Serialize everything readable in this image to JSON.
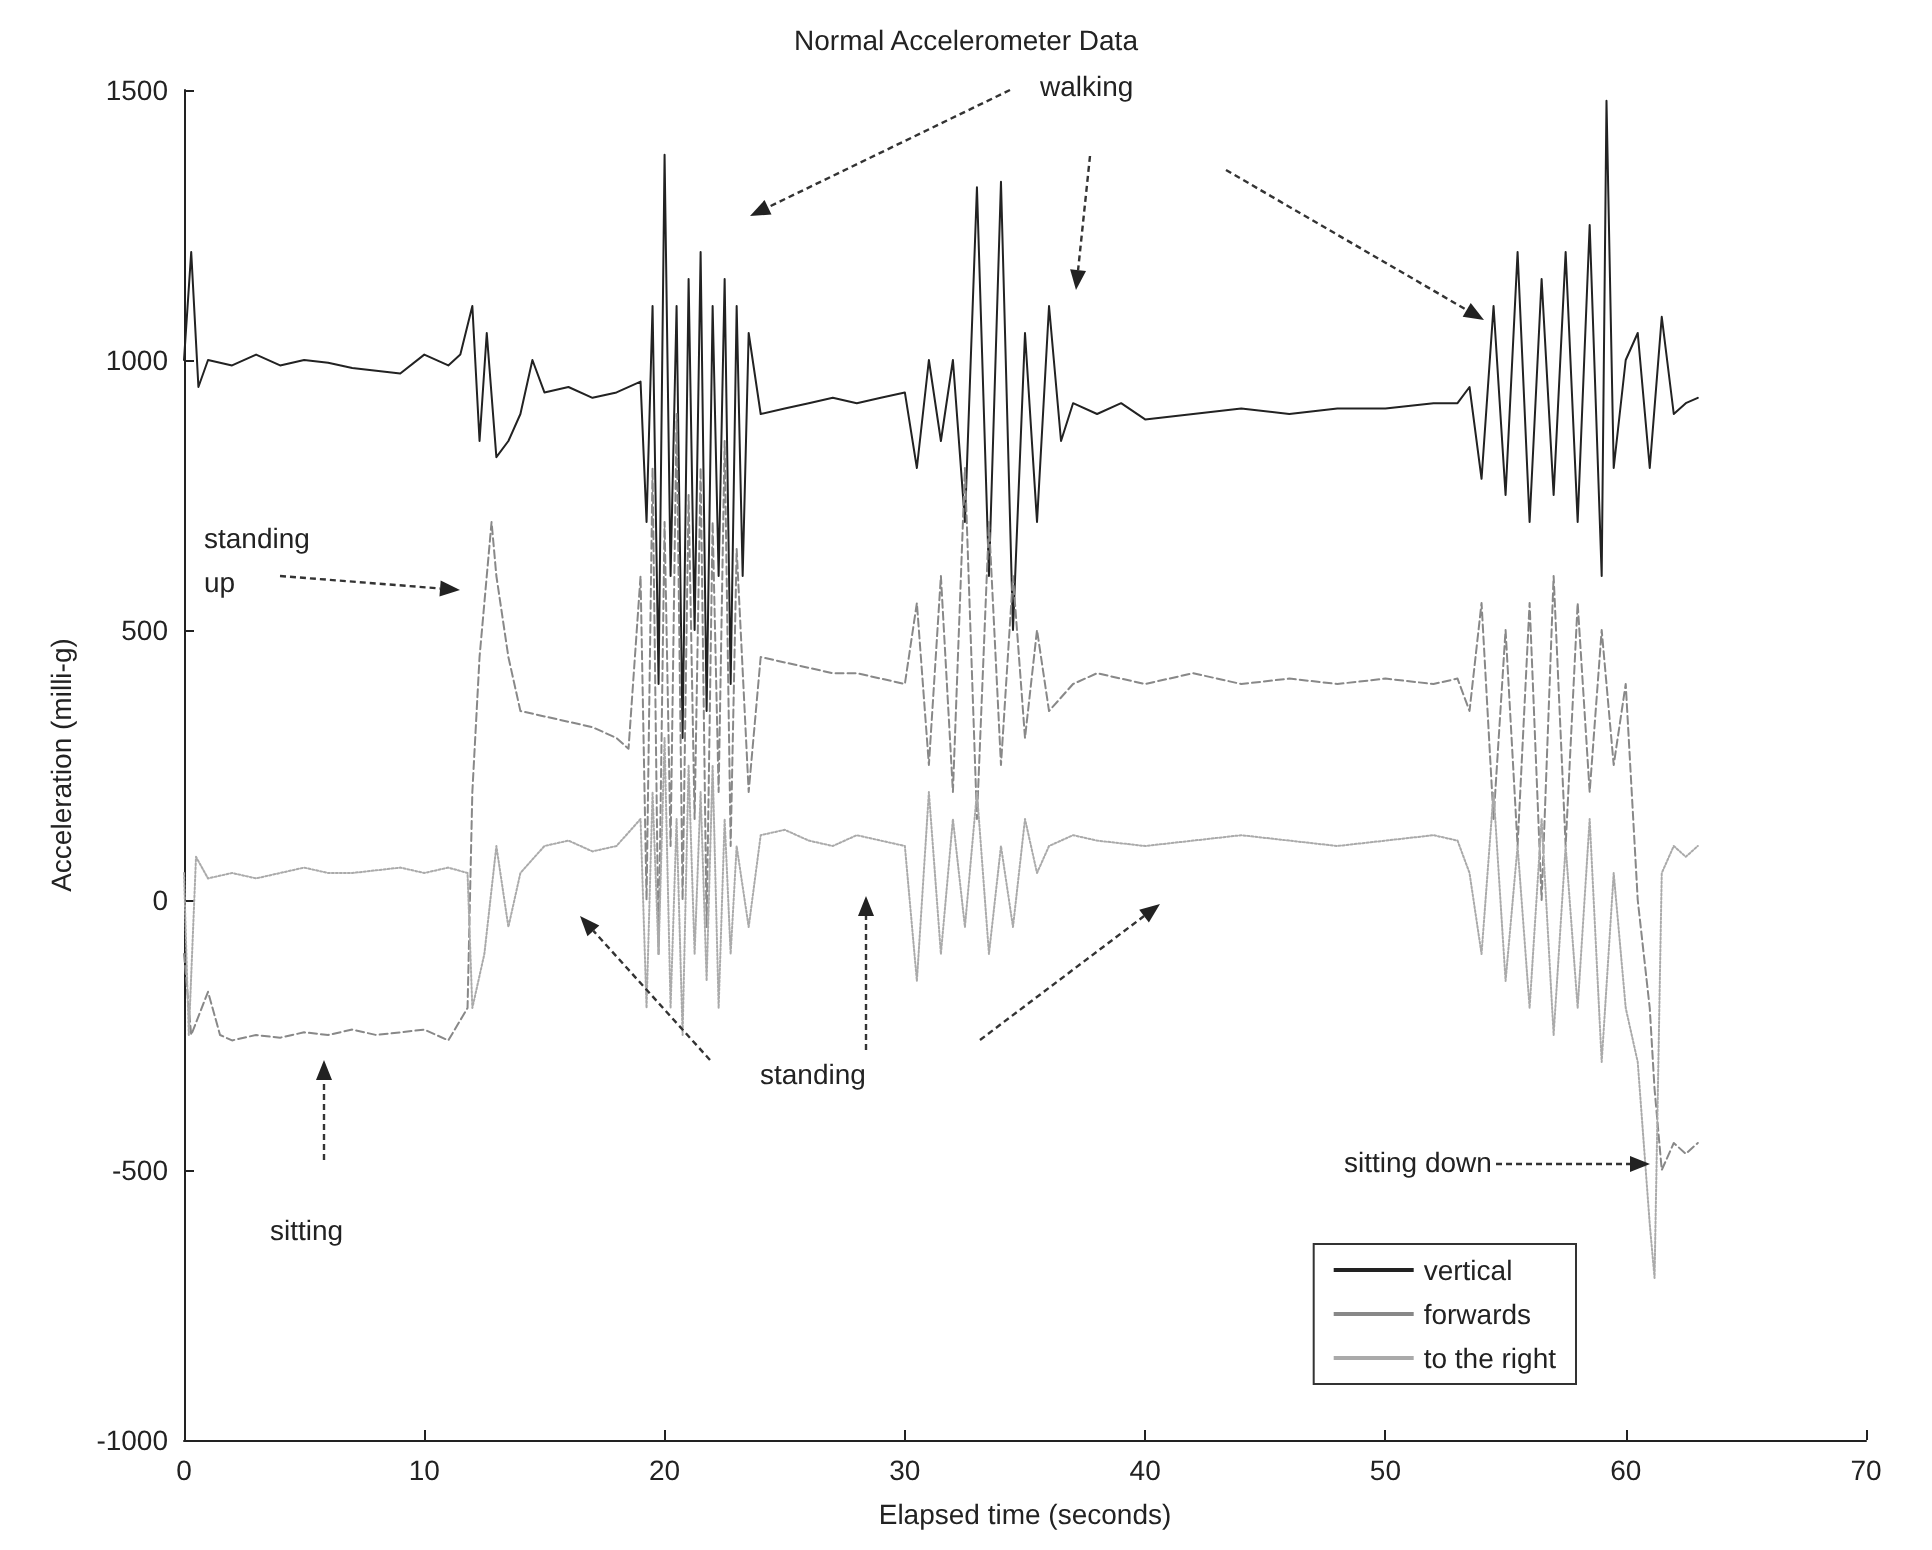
{
  "chart_data": {
    "type": "line",
    "title": "Normal Accelerometer Data",
    "xlabel": "Elapsed time (seconds)",
    "ylabel": "Acceleration (milli-g)",
    "xlim": [
      0,
      70
    ],
    "xticks": [
      0,
      10,
      20,
      30,
      40,
      50,
      60,
      70
    ],
    "ylim": [
      -1000,
      1500
    ],
    "yticks": [
      -1000,
      -500,
      0,
      500,
      1000,
      1500
    ],
    "grid": false,
    "legend": "bottom right",
    "annotations": [
      "walking",
      "standing up",
      "standing",
      "sitting",
      "sitting down"
    ],
    "x": [
      0,
      0.3,
      0.6,
      1,
      2,
      3,
      4,
      5,
      6,
      7,
      8,
      9,
      10,
      11,
      11.5,
      12,
      12.3,
      12.6,
      13,
      13.5,
      14,
      14.5,
      15,
      16,
      17,
      18,
      19,
      19.25,
      19.5,
      19.75,
      20,
      20.25,
      20.5,
      20.75,
      21,
      21.25,
      21.5,
      21.75,
      22,
      22.25,
      22.5,
      22.75,
      23,
      23.25,
      23.5,
      24,
      25,
      26,
      27,
      28,
      29,
      30,
      30.5,
      31,
      31.5,
      32,
      32.5,
      33,
      33.5,
      34,
      34.5,
      35,
      35.5,
      36,
      36.5,
      37,
      38,
      39,
      40,
      42,
      44,
      46,
      48,
      50,
      52,
      53,
      53.5,
      54,
      54.5,
      55,
      55.5,
      56,
      56.5,
      57,
      57.5,
      58,
      58.5,
      59,
      59.2,
      59.5,
      60,
      60.5,
      61,
      61.5,
      62,
      62.5,
      63
    ],
    "series": [
      {
        "name": "vertical",
        "color": "#222222",
        "line_style": "solid",
        "values": [
          1000,
          1200,
          950,
          1000,
          990,
          1010,
          990,
          1000,
          995,
          985,
          980,
          975,
          1010,
          990,
          1010,
          1100,
          850,
          1050,
          820,
          850,
          900,
          1000,
          940,
          950,
          930,
          940,
          960,
          700,
          1100,
          400,
          1380,
          600,
          1100,
          300,
          1150,
          500,
          1200,
          350,
          1100,
          600,
          1150,
          400,
          1100,
          600,
          1050,
          900,
          910,
          920,
          930,
          920,
          930,
          940,
          800,
          1000,
          850,
          1000,
          700,
          1320,
          600,
          1330,
          500,
          1050,
          700,
          1100,
          850,
          920,
          900,
          920,
          890,
          900,
          910,
          900,
          910,
          910,
          920,
          920,
          950,
          780,
          1100,
          750,
          1200,
          700,
          1150,
          750,
          1200,
          700,
          1250,
          600,
          1480,
          800,
          1000,
          1050,
          800,
          1080,
          900,
          920,
          930
        ]
      },
      {
        "name": "forwards",
        "color": "#888888",
        "line_style": "dashed",
        "x": [
          0,
          0.3,
          1,
          1.5,
          2,
          3,
          4,
          5,
          6,
          7,
          8,
          9,
          10,
          11,
          11.8,
          12,
          12.3,
          12.8,
          13,
          13.5,
          14,
          15,
          16,
          17,
          18,
          18.5,
          19,
          19.25,
          19.5,
          19.75,
          20,
          20.25,
          20.5,
          20.75,
          21,
          21.25,
          21.5,
          21.75,
          22,
          22.25,
          22.5,
          22.75,
          23,
          23.5,
          24,
          25,
          26,
          27,
          28,
          29,
          30,
          30.5,
          31,
          31.5,
          32,
          32.5,
          33,
          33.5,
          34,
          34.5,
          35,
          35.5,
          36,
          37,
          38,
          40,
          42,
          44,
          46,
          48,
          50,
          52,
          53,
          53.5,
          54,
          54.5,
          55,
          55.5,
          56,
          56.5,
          57,
          57.5,
          58,
          58.5,
          59,
          59.5,
          60,
          60.5,
          61,
          61.2,
          61.5,
          62,
          62.5,
          63
        ],
        "values": [
          -100,
          -250,
          -170,
          -250,
          -260,
          -250,
          -255,
          -245,
          -250,
          -240,
          -250,
          -245,
          -240,
          -260,
          -200,
          200,
          450,
          700,
          600,
          450,
          350,
          340,
          330,
          320,
          300,
          280,
          600,
          0,
          800,
          -100,
          700,
          100,
          900,
          0,
          750,
          150,
          800,
          -50,
          700,
          200,
          850,
          100,
          650,
          200,
          450,
          440,
          430,
          420,
          420,
          410,
          400,
          550,
          250,
          600,
          200,
          800,
          150,
          700,
          250,
          600,
          300,
          500,
          350,
          400,
          420,
          400,
          420,
          400,
          410,
          400,
          410,
          400,
          410,
          350,
          550,
          150,
          500,
          100,
          550,
          0,
          600,
          100,
          550,
          200,
          500,
          250,
          400,
          0,
          -200,
          -350,
          -500,
          -450,
          -470,
          -450
        ]
      },
      {
        "name": "to the right",
        "color": "#aaaaaa",
        "line_style": "dotted",
        "x": [
          0,
          0.2,
          0.5,
          1,
          2,
          3,
          4,
          5,
          6,
          7,
          8,
          9,
          10,
          11,
          11.8,
          12,
          12.5,
          13,
          13.5,
          14,
          15,
          16,
          17,
          18,
          19,
          19.25,
          19.5,
          19.75,
          20,
          20.25,
          20.5,
          20.75,
          21,
          21.25,
          21.5,
          21.75,
          22,
          22.25,
          22.5,
          22.75,
          23,
          23.5,
          24,
          25,
          26,
          27,
          28,
          29,
          30,
          30.5,
          31,
          31.5,
          32,
          32.5,
          33,
          33.5,
          34,
          34.5,
          35,
          35.5,
          36,
          37,
          38,
          40,
          42,
          44,
          46,
          48,
          50,
          52,
          53,
          53.5,
          54,
          54.5,
          55,
          55.5,
          56,
          56.5,
          57,
          57.5,
          58,
          58.5,
          59,
          59.5,
          60,
          60.5,
          61,
          61.2,
          61.5,
          62,
          62.5,
          63
        ],
        "values": [
          50,
          -250,
          80,
          40,
          50,
          40,
          50,
          60,
          50,
          50,
          55,
          60,
          50,
          60,
          50,
          -200,
          -100,
          100,
          -50,
          50,
          100,
          110,
          90,
          100,
          150,
          -200,
          200,
          -100,
          300,
          -200,
          150,
          -250,
          250,
          -100,
          200,
          -150,
          250,
          -200,
          150,
          -100,
          100,
          -50,
          120,
          130,
          110,
          100,
          120,
          110,
          100,
          -150,
          200,
          -100,
          150,
          -50,
          200,
          -100,
          100,
          -50,
          150,
          50,
          100,
          120,
          110,
          100,
          110,
          120,
          110,
          100,
          110,
          120,
          110,
          50,
          -100,
          200,
          -150,
          100,
          -200,
          150,
          -250,
          100,
          -200,
          150,
          -300,
          50,
          -200,
          -300,
          -600,
          -700,
          50,
          100,
          80,
          100
        ]
      }
    ]
  }
}
